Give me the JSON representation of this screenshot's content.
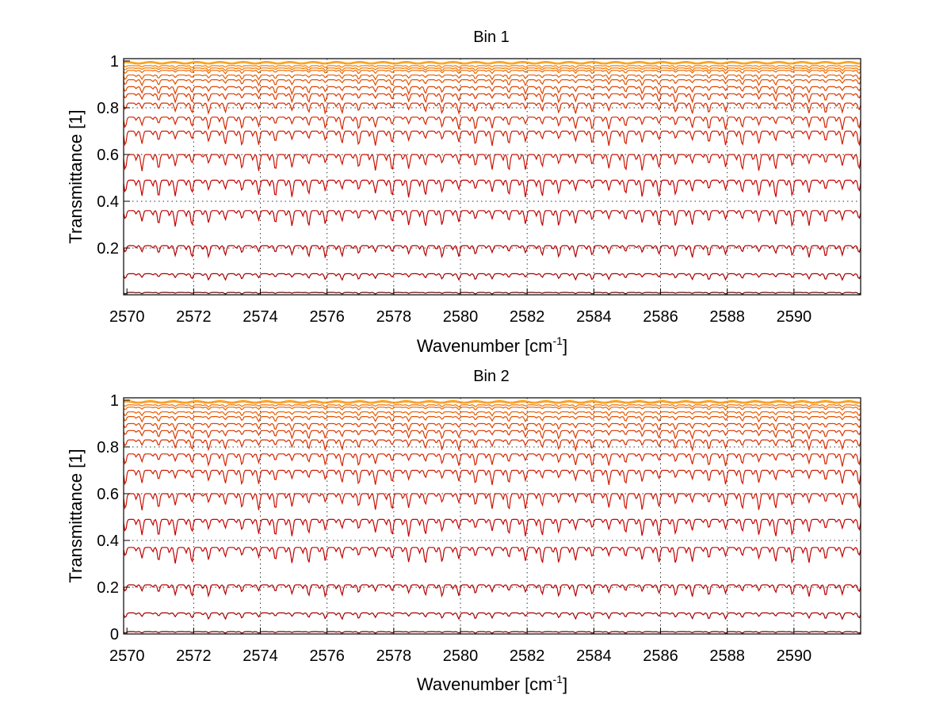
{
  "chart_data": [
    {
      "type": "line",
      "title": "Bin 1",
      "xlabel": "Wavenumber [cm",
      "xlabel_sup": "-1",
      "xlabel_end": "]",
      "ylabel": "Transmittance [1]",
      "xlim": [
        2569.9,
        2592
      ],
      "ylim": [
        0,
        1.01
      ],
      "xticks": [
        "2570",
        "2572",
        "2574",
        "2576",
        "2578",
        "2580",
        "2582",
        "2584",
        "2586",
        "2588",
        "2590"
      ],
      "xtick_values": [
        2570,
        2572,
        2574,
        2576,
        2578,
        2580,
        2582,
        2584,
        2586,
        2588,
        2590
      ],
      "yticks": [
        "0.2",
        "0.4",
        "0.6",
        "0.8",
        "1"
      ],
      "ytick_values": [
        0.2,
        0.4,
        0.6,
        0.8,
        1
      ],
      "grid": true,
      "series_levels": [
        0.01,
        0.09,
        0.21,
        0.36,
        0.49,
        0.6,
        0.7,
        0.76,
        0.82,
        0.86,
        0.89,
        0.92,
        0.94,
        0.96,
        0.97,
        0.98,
        0.99,
        0.995
      ],
      "colors": [
        "#6b0000",
        "#a50000",
        "#b40000",
        "#c00000",
        "#c80000",
        "#cc1100",
        "#d01a00",
        "#d42400",
        "#d82e00",
        "#dc3800",
        "#e04400",
        "#e45000",
        "#e85c00",
        "#ec6800",
        "#f07400",
        "#f48000",
        "#f88c00",
        "#fca000"
      ]
    },
    {
      "type": "line",
      "title": "Bin 2",
      "xlabel": "Wavenumber [cm",
      "xlabel_sup": "-1",
      "xlabel_end": "]",
      "ylabel": "Transmittance [1]",
      "xlim": [
        2569.9,
        2592
      ],
      "ylim": [
        0,
        1.01
      ],
      "xticks": [
        "2570",
        "2572",
        "2574",
        "2576",
        "2578",
        "2580",
        "2582",
        "2584",
        "2586",
        "2588",
        "2590"
      ],
      "xtick_values": [
        2570,
        2572,
        2574,
        2576,
        2578,
        2580,
        2582,
        2584,
        2586,
        2588,
        2590
      ],
      "yticks": [
        "0",
        "0.2",
        "0.4",
        "0.6",
        "0.8",
        "1"
      ],
      "ytick_values": [
        0,
        0.2,
        0.4,
        0.6,
        0.8,
        1
      ],
      "grid": true,
      "series_levels": [
        0.01,
        0.09,
        0.21,
        0.37,
        0.49,
        0.6,
        0.7,
        0.77,
        0.83,
        0.87,
        0.9,
        0.93,
        0.95,
        0.97,
        0.98,
        0.99,
        0.995
      ],
      "colors": [
        "#6b0000",
        "#a50000",
        "#b40000",
        "#c00000",
        "#c80000",
        "#cc1100",
        "#d01a00",
        "#d42400",
        "#d82e00",
        "#dc3800",
        "#e04400",
        "#e45000",
        "#e85c00",
        "#ec6800",
        "#f07400",
        "#f48000",
        "#fca000"
      ]
    }
  ]
}
